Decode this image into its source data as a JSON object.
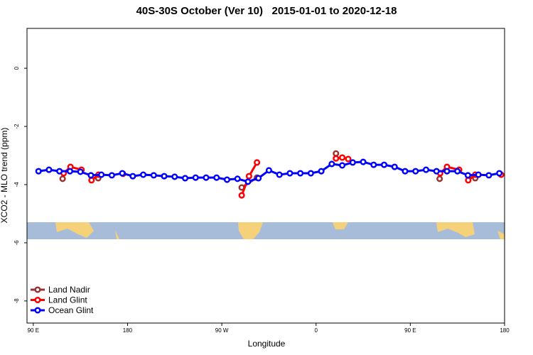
{
  "chart_data": {
    "type": "line",
    "title": "40S-30S October (Ver 10)   2015-01-01 to 2020-12-18",
    "x_label": "Longitude",
    "y_label": "XCO2 - MLO trend (ppm)",
    "xlim": [
      84,
      540
    ],
    "ylim": [
      -8.76,
      1.37
    ],
    "xticks": [
      {
        "value": 90,
        "label": "90 E"
      },
      180,
      {
        "value": 270,
        "label": "90 W"
      },
      {
        "value": 360,
        "label": "0"
      },
      {
        "value": 450,
        "label": "90 E"
      },
      {
        "value": 540,
        "label": "180"
      }
    ],
    "yticks": [
      0,
      -2,
      -4,
      -6,
      -8
    ],
    "legend": "bottom-left",
    "series": [
      {
        "name": "Land Nadir",
        "color": "#993333",
        "x": [
          118,
          null,
          152,
          null,
          289,
          303.6,
          null,
          379,
          null,
          478,
          null,
          512
        ],
        "values": [
          -3.8,
          null,
          -3.78,
          null,
          -4.1,
          -3.76,
          null,
          -2.93,
          null,
          -3.8,
          null,
          -3.78
        ]
      },
      {
        "name": "Land Glint",
        "color": "#ff0000",
        "x": [
          119,
          125.5,
          136,
          null,
          145.6,
          152.3,
          null,
          175.7,
          null,
          289,
          296,
          303.6,
          null,
          379,
          385,
          390.7,
          null,
          478.5,
          485,
          496.6,
          null,
          505.3,
          512,
          null,
          536.7
        ],
        "values": [
          -3.61,
          -3.39,
          -3.49,
          null,
          -3.85,
          -3.66,
          null,
          -3.63,
          null,
          -4.37,
          -3.71,
          -3.24,
          null,
          -3.1,
          -3.07,
          -3.12,
          null,
          -3.61,
          -3.39,
          -3.49,
          null,
          -3.85,
          -3.66,
          null,
          -3.66
        ]
      },
      {
        "name": "Ocean Glint",
        "color": "#0000ff",
        "x": [
          95,
          105,
          115,
          125,
          135,
          145,
          155,
          165,
          175,
          185,
          195,
          205,
          215,
          225,
          235,
          245,
          255,
          265,
          275,
          285,
          295,
          305,
          315,
          325,
          335,
          345,
          355,
          365,
          375,
          385,
          395,
          405,
          415,
          425,
          435,
          445,
          455,
          465,
          475,
          485,
          495,
          505,
          515,
          525,
          535
        ],
        "values": [
          -3.54,
          -3.49,
          -3.54,
          -3.54,
          -3.56,
          -3.68,
          -3.66,
          -3.68,
          -3.61,
          -3.71,
          -3.66,
          -3.68,
          -3.71,
          -3.73,
          -3.78,
          -3.76,
          -3.76,
          -3.76,
          -3.83,
          -3.8,
          -3.9,
          -3.78,
          -3.51,
          -3.66,
          -3.61,
          -3.61,
          -3.61,
          -3.54,
          -3.29,
          -3.34,
          -3.24,
          -3.22,
          -3.32,
          -3.32,
          -3.39,
          -3.54,
          -3.54,
          -3.49,
          -3.54,
          -3.54,
          -3.54,
          -3.68,
          -3.66,
          -3.68,
          -3.61
        ]
      }
    ]
  }
}
